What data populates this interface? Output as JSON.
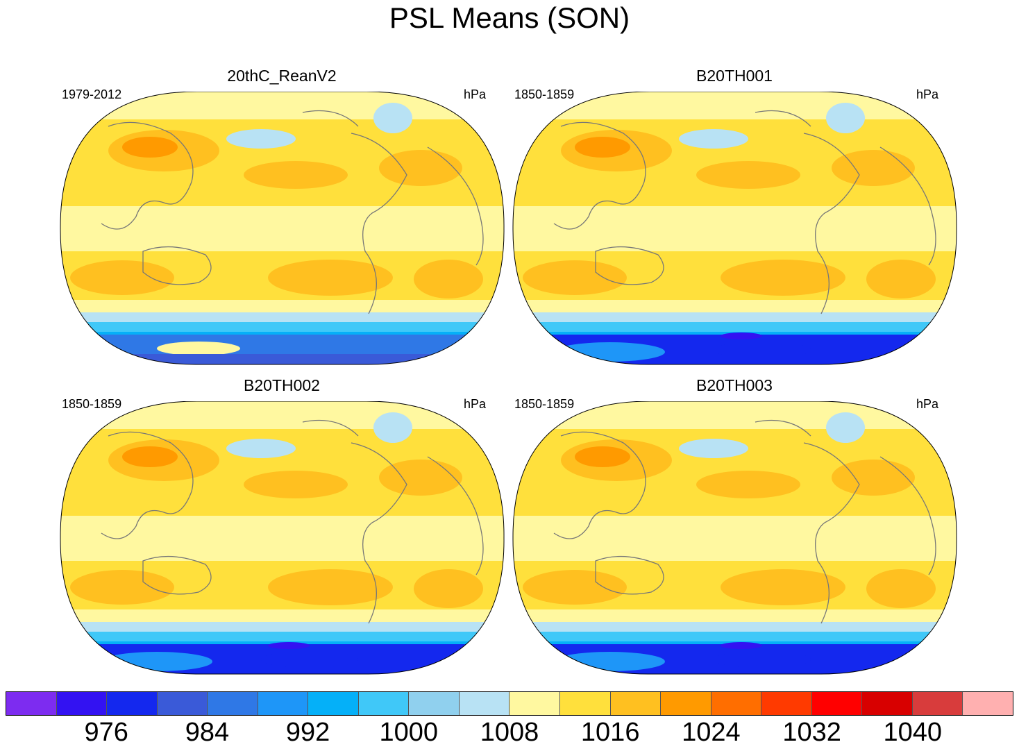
{
  "title": "PSL Means (SON)",
  "units": "hPa",
  "panels": [
    {
      "title": "20thC_ReanV2",
      "period": "1979-2012",
      "units": "hPa",
      "variant": "rean"
    },
    {
      "title": "B20TH001",
      "period": "1850-1859",
      "units": "hPa",
      "variant": "model"
    },
    {
      "title": "B20TH002",
      "period": "1850-1859",
      "units": "hPa",
      "variant": "model"
    },
    {
      "title": "B20TH003",
      "period": "1850-1859",
      "units": "hPa",
      "variant": "model"
    }
  ],
  "colorbar": {
    "colors": [
      "#7d2cf0",
      "#3312f2",
      "#1428ee",
      "#3a5ad8",
      "#2f78e6",
      "#1e96f8",
      "#05b0f8",
      "#40c8f8",
      "#90d0ee",
      "#b8e2f4",
      "#fff8a0",
      "#ffe03c",
      "#ffc020",
      "#ff9a00",
      "#ff6e00",
      "#ff3a00",
      "#ff0000",
      "#d80000",
      "#d83c3c",
      "#ffb0b0"
    ],
    "labels": [
      "976",
      "984",
      "992",
      "1000",
      "1008",
      "1016",
      "1024",
      "1032",
      "1040"
    ]
  }
}
